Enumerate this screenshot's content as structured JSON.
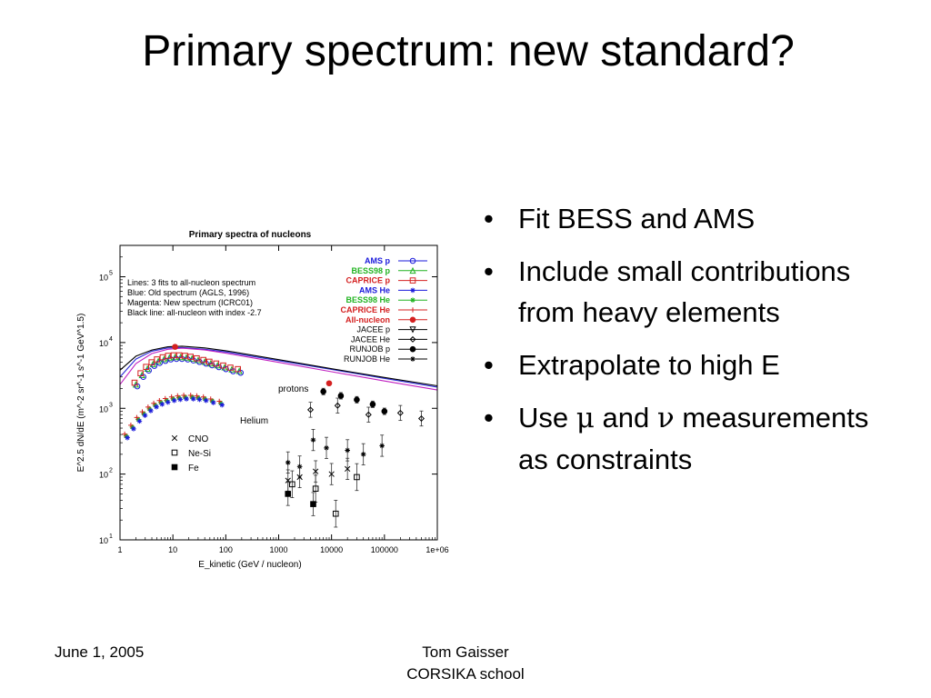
{
  "title": "Primary spectrum: new standard?",
  "bullets": [
    {
      "text": "Fit BESS and AMS"
    },
    {
      "text": "Include small contributions from heavy elements"
    },
    {
      "text": "Extrapolate to high E"
    },
    {
      "pre": "Use ",
      "sym1": "μ",
      "mid": " and ",
      "sym2": "ν",
      "post": " measurements as constraints"
    }
  ],
  "footer": {
    "date": "June 1, 2005",
    "author_line1": "Tom Gaisser",
    "author_line2": "CORSIKA school"
  },
  "chart_data": {
    "type": "scatter",
    "title": "Primary spectra of nucleons",
    "xlabel": "E_kinetic (GeV / nucleon)",
    "ylabel": "E^2.5 dN/dE (m^-2 sr^-1 s^-1 GeV^1.5)",
    "xscale": "log",
    "yscale": "log",
    "xlim": [
      1,
      1000000
    ],
    "ylim": [
      10,
      300000
    ],
    "xticks": [
      "1",
      "10",
      "100",
      "1000",
      "10000",
      "100000",
      "1e+06"
    ],
    "yticks": [
      "10",
      "2",
      "3",
      "4",
      "5"
    ],
    "grid": false,
    "notes": [
      "Lines: 3 fits to all-nucleon spectrum",
      "Blue: Old spectrum (AGLS, 1996)",
      "Magenta: New spectrum (ICRC01)",
      "Black line: all-nucleon with index -2.7"
    ],
    "annotations": [
      "protons",
      "Helium"
    ],
    "legend": [
      {
        "label": "AMS p",
        "color": "#1a1adb",
        "marker": "circle-open"
      },
      {
        "label": "BESS98 p",
        "color": "#22b422",
        "marker": "triangle-open"
      },
      {
        "label": "CAPRICE p",
        "color": "#d42020",
        "marker": "square-open"
      },
      {
        "label": "AMS He",
        "color": "#1a1adb",
        "marker": "star"
      },
      {
        "label": "BESS98 He",
        "color": "#22b422",
        "marker": "star"
      },
      {
        "label": "CAPRICE He",
        "color": "#d42020",
        "marker": "cross"
      },
      {
        "label": "All-nucleon",
        "color": "#d42020",
        "marker": "dot"
      },
      {
        "label": "JACEE p",
        "color": "#000000",
        "marker": "triangle-down-open"
      },
      {
        "label": "JACEE He",
        "color": "#000000",
        "marker": "diamond-open"
      },
      {
        "label": "RUNJOB p",
        "color": "#000000",
        "marker": "dot"
      },
      {
        "label": "RUNJOB He",
        "color": "#000000",
        "marker": "star"
      }
    ],
    "legend2": [
      {
        "label": "CNO",
        "marker": "x"
      },
      {
        "label": "Ne-Si",
        "marker": "square-open"
      },
      {
        "label": "Fe",
        "marker": "square-filled"
      }
    ],
    "lines": [
      {
        "name": "Blue",
        "color": "#2a2ad6",
        "x": [
          1,
          2,
          4,
          8,
          15,
          40,
          100,
          1000,
          10000,
          100000,
          1000000
        ],
        "y": [
          3000,
          5600,
          7400,
          8300,
          8400,
          7900,
          7200,
          5300,
          3900,
          2850,
          2100
        ]
      },
      {
        "name": "Magenta",
        "color": "#c020c0",
        "x": [
          1,
          2,
          4,
          8,
          15,
          40,
          100,
          1000,
          10000,
          100000,
          1000000
        ],
        "y": [
          2300,
          4800,
          6800,
          7900,
          8200,
          7700,
          6900,
          5000,
          3600,
          2600,
          1900
        ]
      },
      {
        "name": "Black line",
        "color": "#000000",
        "x": [
          1,
          2,
          4,
          8,
          15,
          40,
          100,
          1000,
          10000,
          100000,
          1000000
        ],
        "y": [
          3800,
          6200,
          7700,
          8600,
          8800,
          8300,
          7500,
          5500,
          4000,
          2950,
          2200
        ]
      }
    ],
    "series": [
      {
        "name": "protons (AMS / BESS98 / CAPRICE)",
        "color": "#22b422",
        "x": [
          2,
          2.6,
          3.3,
          4.2,
          5.3,
          6.8,
          8.6,
          11,
          14,
          18,
          23,
          30,
          40,
          52,
          70,
          95,
          130,
          180
        ],
        "y": [
          2300,
          3200,
          4000,
          4700,
          5200,
          5600,
          5900,
          6000,
          6000,
          5900,
          5700,
          5400,
          5100,
          4800,
          4500,
          4200,
          3900,
          3700
        ]
      },
      {
        "name": "Helium (AMS / BESS98 / CAPRICE)",
        "color": "#22b422",
        "x": [
          1.3,
          1.7,
          2.2,
          2.8,
          3.6,
          4.6,
          5.9,
          7.6,
          10,
          13,
          17,
          23,
          30,
          40,
          55,
          80
        ],
        "y": [
          380,
          520,
          680,
          830,
          980,
          1120,
          1230,
          1320,
          1400,
          1450,
          1480,
          1480,
          1450,
          1400,
          1300,
          1200
        ]
      },
      {
        "name": "All-nucleon",
        "color": "#d42020",
        "x": [
          11,
          9000
        ],
        "y": [
          8600,
          2400
        ]
      },
      {
        "name": "RUNJOB p",
        "color": "#000000",
        "x": [
          7000,
          15000,
          30000,
          60000,
          100000
        ],
        "y": [
          1800,
          1550,
          1350,
          1150,
          900
        ]
      },
      {
        "name": "JACEE p / He",
        "color": "#000000",
        "x": [
          4000,
          13000,
          50000,
          200000,
          500000
        ],
        "y": [
          950,
          1100,
          800,
          850,
          700
        ]
      },
      {
        "name": "RUNJOB He",
        "color": "#000000",
        "x": [
          1500,
          2500,
          4500,
          8000,
          20000,
          40000,
          90000
        ],
        "y": [
          150,
          130,
          330,
          250,
          230,
          200,
          270
        ]
      },
      {
        "name": "CNO",
        "color": "#000000",
        "x": [
          1500,
          2500,
          5000,
          10000,
          20000
        ],
        "y": [
          80,
          90,
          110,
          100,
          120
        ]
      },
      {
        "name": "Ne-Si",
        "color": "#000000",
        "x": [
          1800,
          5000,
          12000,
          30000
        ],
        "y": [
          70,
          60,
          25,
          90
        ]
      },
      {
        "name": "Fe",
        "color": "#000000",
        "x": [
          1500,
          4500
        ],
        "y": [
          50,
          35
        ]
      }
    ]
  }
}
